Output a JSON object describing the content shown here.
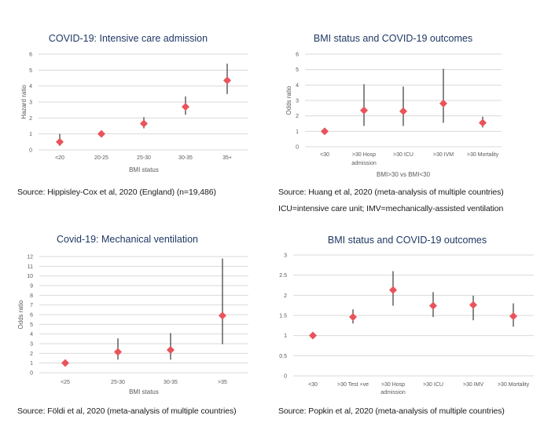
{
  "chart_data": [
    {
      "id": "icu",
      "type": "scatter",
      "title": "COVID-19: Intensive care admission",
      "xlabel": "BMI status",
      "ylabel": "Hazard ratio",
      "ylim": [
        0,
        6
      ],
      "yticks": [
        0,
        1,
        2,
        3,
        4,
        5,
        6
      ],
      "grid": true,
      "legend": "none",
      "categories": [
        [
          "<20"
        ],
        [
          "20-25"
        ],
        [
          "25-30"
        ],
        [
          "30-35"
        ],
        [
          "35+"
        ]
      ],
      "values": [
        0.5,
        1.0,
        1.65,
        2.7,
        4.35
      ],
      "ci_low": [
        0.25,
        null,
        1.35,
        2.2,
        3.5
      ],
      "ci_high": [
        1.0,
        null,
        2.05,
        3.35,
        5.4
      ]
    },
    {
      "id": "huang",
      "type": "scatter",
      "title": "BMI status and COVID-19 outcomes",
      "xlabel": "BMI>30 vs BMI<30",
      "ylabel": "Odds ratio",
      "ylim": [
        0,
        6
      ],
      "yticks": [
        0,
        1,
        2,
        3,
        4,
        5,
        6
      ],
      "grid": true,
      "legend": "none",
      "categories": [
        [
          "<30"
        ],
        [
          ">30 Hosp",
          "admission"
        ],
        [
          ">30 ICU"
        ],
        [
          ">30 IVM"
        ],
        [
          ">30 Mortality"
        ]
      ],
      "values": [
        1.0,
        2.35,
        2.3,
        2.8,
        1.55
      ],
      "ci_low": [
        null,
        1.35,
        1.35,
        1.55,
        1.25
      ],
      "ci_high": [
        null,
        4.05,
        3.9,
        5.05,
        1.95
      ]
    },
    {
      "id": "ventilation",
      "type": "scatter",
      "title": "Covid-19: Mechanical ventilation",
      "xlabel": "BMI status",
      "ylabel": "Odds ratio",
      "ylim": [
        0,
        12
      ],
      "yticks": [
        0,
        1,
        2,
        3,
        4,
        5,
        6,
        7,
        8,
        9,
        10,
        11,
        12
      ],
      "grid": true,
      "legend": "none",
      "categories": [
        [
          "<25"
        ],
        [
          "25-30"
        ],
        [
          "30-35"
        ],
        [
          ">35"
        ]
      ],
      "values": [
        1.0,
        2.15,
        2.35,
        5.9
      ],
      "ci_low": [
        null,
        1.35,
        1.35,
        2.95
      ],
      "ci_high": [
        null,
        3.55,
        4.1,
        11.8
      ]
    },
    {
      "id": "popkin",
      "type": "scatter",
      "title": "BMI status and COVID-19 outcomes",
      "xlabel": "",
      "ylabel": "",
      "ylim": [
        0,
        3
      ],
      "yticks": [
        0,
        0.5,
        1,
        1.5,
        2,
        2.5,
        3
      ],
      "grid": true,
      "legend": "none",
      "categories": [
        [
          "<30"
        ],
        [
          ">30 Test +ve"
        ],
        [
          ">30 Hosp",
          "admission"
        ],
        [
          ">30 ICU"
        ],
        [
          ">30 IMV"
        ],
        [
          ">30 Mortality"
        ]
      ],
      "values": [
        1.0,
        1.46,
        2.13,
        1.74,
        1.76,
        1.48
      ],
      "ci_low": [
        null,
        1.3,
        1.74,
        1.46,
        1.38,
        1.22
      ],
      "ci_high": [
        null,
        1.65,
        2.6,
        2.08,
        1.99,
        1.8
      ]
    }
  ],
  "captions": {
    "icu_source": "Source: Hippisley-Cox et al, 2020 (England) (n=19,486)",
    "huang_source": "Source: Huang et al, 2020 (meta-analysis of multiple countries)",
    "huang_note": "ICU=intensive care unit; IMV=mechanically-assisted ventilation",
    "ventilation_source": "Source: Földi et al, 2020 (meta-analysis of multiple countries)",
    "popkin_source": "Source: Popkin et al, 2020 (meta-analysis of multiple countries)"
  },
  "colors": {
    "title": "#1f3864",
    "marker": "#e8545a",
    "error_bar": "#555555",
    "grid": "#d9d9d9",
    "tick_text": "#595959"
  }
}
